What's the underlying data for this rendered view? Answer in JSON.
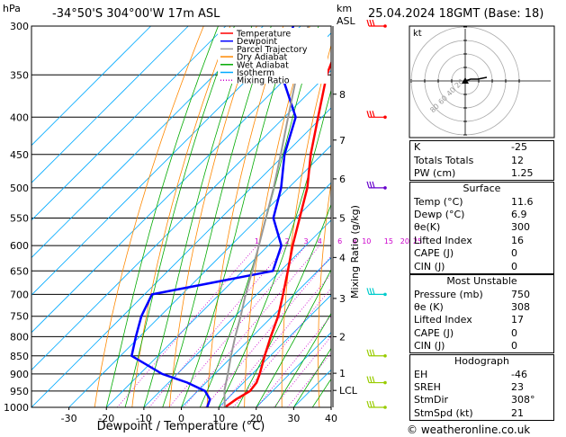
{
  "header": {
    "pressure_unit": "hPa",
    "location": "-34°50'S 304°00'W 17m ASL",
    "km_label": "km",
    "asl_label": "ASL",
    "datetime": "25.04.2024 18GMT (Base: 18)"
  },
  "footer": {
    "xlabel": "Dewpoint / Temperature (°C)",
    "ylabel_right": "Mixing Ratio (g/kg)",
    "credit": "© weatheronline.co.uk"
  },
  "legend": [
    {
      "label": "Temperature",
      "color": "#ff0000",
      "style": "solid"
    },
    {
      "label": "Dewpoint",
      "color": "#0000ff",
      "style": "solid"
    },
    {
      "label": "Parcel Trajectory",
      "color": "#999999",
      "style": "solid"
    },
    {
      "label": "Dry Adiabat",
      "color": "#ff8800",
      "style": "solid"
    },
    {
      "label": "Wet Adiabat",
      "color": "#00aa00",
      "style": "solid"
    },
    {
      "label": "Isotherm",
      "color": "#00aaff",
      "style": "solid"
    },
    {
      "label": "Mixing Ratio",
      "color": "#cc00cc",
      "style": "dotted"
    }
  ],
  "chart_data": {
    "type": "line",
    "pressure_levels": [
      300,
      350,
      400,
      450,
      500,
      550,
      600,
      650,
      700,
      750,
      800,
      850,
      900,
      950,
      1000
    ],
    "pressure_range": [
      300,
      1000
    ],
    "temperature_ticks": [
      -30,
      -20,
      -10,
      0,
      10,
      20,
      30,
      40
    ],
    "temperature_range": [
      -40,
      40
    ],
    "skew": 1.0,
    "km_ticks": [
      {
        "label": "8",
        "p": 372
      },
      {
        "label": "7",
        "p": 430
      },
      {
        "label": "6",
        "p": 486
      },
      {
        "label": "5",
        "p": 550
      },
      {
        "label": "4",
        "p": 623
      },
      {
        "label": "3",
        "p": 709
      },
      {
        "label": "2",
        "p": 800
      },
      {
        "label": "1",
        "p": 898
      },
      {
        "label": "LCL",
        "p": 948
      }
    ],
    "mixing_ratio_labels": [
      "1",
      "2",
      "3",
      "4",
      "6",
      "8",
      "10",
      "15",
      "20",
      "25"
    ],
    "mixing_ratio_values": [
      1,
      2,
      3,
      4,
      6,
      8,
      10,
      15,
      20,
      25
    ],
    "series": [
      {
        "name": "Temperature",
        "color": "#ff0000",
        "p": [
          1000,
          975,
          950,
          925,
          900,
          850,
          800,
          750,
          700,
          650,
          600,
          550,
          500,
          450,
          400,
          350,
          300
        ],
        "t": [
          11.6,
          12.5,
          14.0,
          13.5,
          12.0,
          8.5,
          5.0,
          1.5,
          -3.0,
          -8.0,
          -13.5,
          -19.0,
          -25.0,
          -33.0,
          -41.0,
          -50.0,
          -58.0
        ]
      },
      {
        "name": "Dewpoint",
        "color": "#0000ff",
        "p": [
          1000,
          975,
          950,
          925,
          900,
          850,
          800,
          750,
          700,
          650,
          600,
          550,
          500,
          450,
          400,
          350,
          300
        ],
        "t": [
          6.9,
          5.5,
          2.0,
          -5.0,
          -14.0,
          -27.0,
          -31.0,
          -35.0,
          -38.0,
          -12.0,
          -16.5,
          -26.0,
          -32.0,
          -40.0,
          -47.0,
          -62.0,
          -72.0
        ]
      },
      {
        "name": "Parcel Trajectory",
        "color": "#999999",
        "p": [
          1000,
          948,
          900,
          850,
          800,
          750,
          700,
          650,
          600,
          550,
          500,
          450,
          400,
          350,
          300
        ],
        "t": [
          11.6,
          7.0,
          3.5,
          -0.5,
          -4.5,
          -8.5,
          -13.0,
          -17.5,
          -22.5,
          -28.0,
          -34.0,
          -41.0,
          -49.0,
          -58.0,
          -68.0
        ]
      }
    ]
  },
  "wind_barbs": [
    {
      "p": 300,
      "color": "#ff0000"
    },
    {
      "p": 400,
      "color": "#ff0000"
    },
    {
      "p": 500,
      "color": "#6600cc"
    },
    {
      "p": 700,
      "color": "#00cccc"
    },
    {
      "p": 850,
      "color": "#99cc00"
    },
    {
      "p": 925,
      "color": "#99cc00"
    },
    {
      "p": 1000,
      "color": "#99cc00"
    }
  ],
  "hodograph": {
    "unit_label": "kt",
    "ring_labels": [
      "20",
      "40",
      "60",
      "80"
    ]
  },
  "indices": {
    "rows": [
      {
        "k": "K",
        "v": "-25"
      },
      {
        "k": "Totals Totals",
        "v": "12"
      },
      {
        "k": "PW (cm)",
        "v": "1.25"
      }
    ]
  },
  "surface": {
    "title": "Surface",
    "rows": [
      {
        "k": "Temp (°C)",
        "v": "11.6"
      },
      {
        "k": "Dewp (°C)",
        "v": "6.9"
      },
      {
        "k": "θe(K)",
        "v": "300"
      },
      {
        "k": "Lifted Index",
        "v": "16"
      },
      {
        "k": "CAPE (J)",
        "v": "0"
      },
      {
        "k": "CIN (J)",
        "v": "0"
      }
    ]
  },
  "most_unstable": {
    "title": "Most Unstable",
    "rows": [
      {
        "k": "Pressure (mb)",
        "v": "750"
      },
      {
        "k": "θe (K)",
        "v": "308"
      },
      {
        "k": "Lifted Index",
        "v": "17"
      },
      {
        "k": "CAPE (J)",
        "v": "0"
      },
      {
        "k": "CIN (J)",
        "v": "0"
      }
    ]
  },
  "hodograph_table": {
    "title": "Hodograph",
    "rows": [
      {
        "k": "EH",
        "v": "-46"
      },
      {
        "k": "SREH",
        "v": "23"
      },
      {
        "k": "StmDir",
        "v": "308°"
      },
      {
        "k": "StmSpd (kt)",
        "v": "21"
      }
    ]
  }
}
